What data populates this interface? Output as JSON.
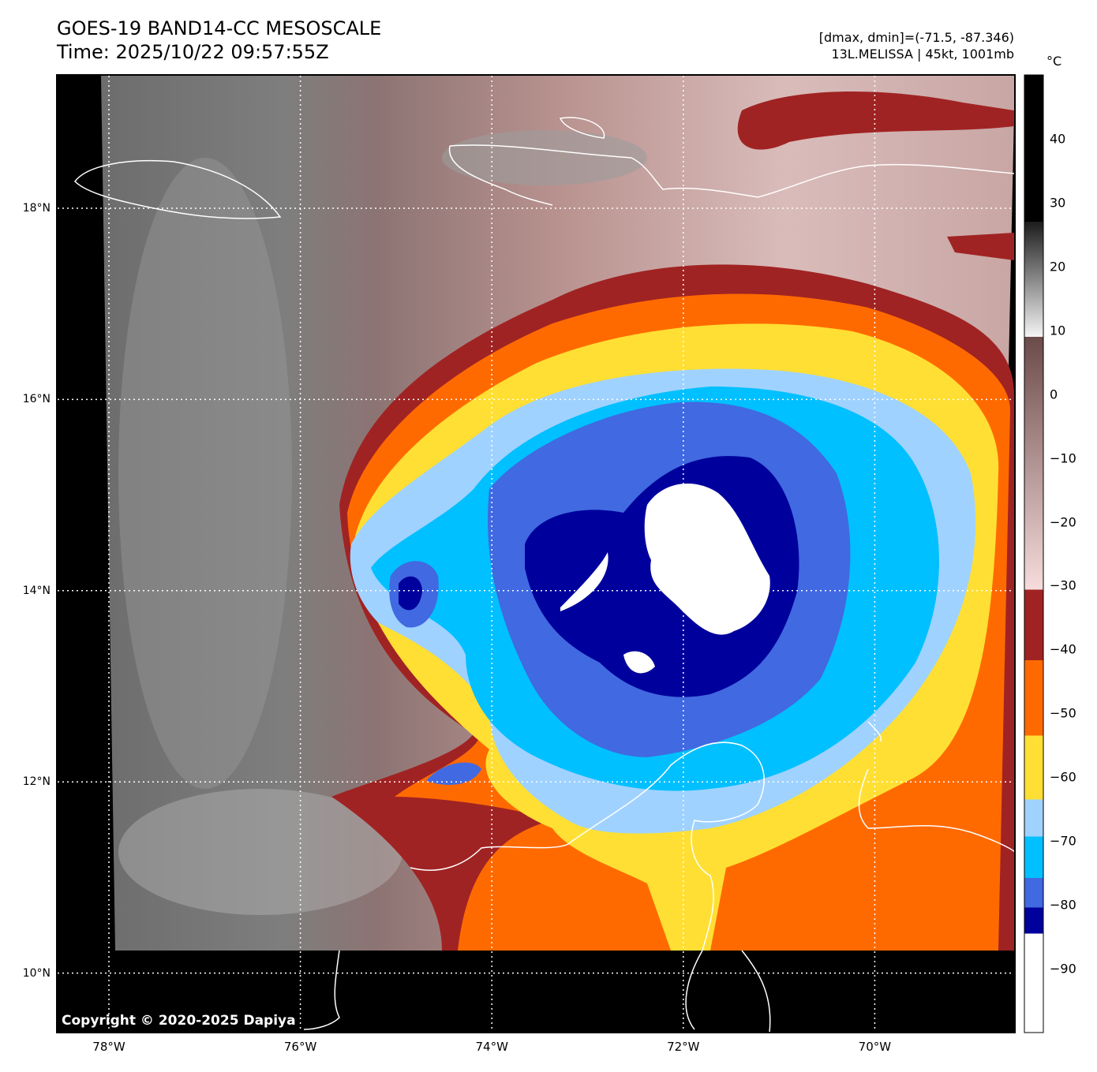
{
  "header": {
    "title_line1": "GOES-19 BAND14-CC MESOSCALE",
    "title_line2": "Time: 2025/10/22 09:57:55Z",
    "stats": "[dmax, dmin]=(-71.5, -87.346)",
    "storm": "13L.MELISSA | 45kt, 1001mb"
  },
  "colorbar": {
    "unit": "°C",
    "range": [
      -100,
      50
    ],
    "ticks": [
      "40",
      "30",
      "20",
      "10",
      "0",
      "−10",
      "−20",
      "−30",
      "−40",
      "−50",
      "−60",
      "−70",
      "−80",
      "−90"
    ],
    "tick_values": [
      40,
      30,
      20,
      10,
      0,
      -10,
      -20,
      -30,
      -40,
      -50,
      -60,
      -70,
      -80,
      -90
    ],
    "bands": [
      {
        "from": 50,
        "to": 27,
        "color": "#000000"
      },
      {
        "from": 27,
        "to": 9,
        "color_start": "#1c1c1c",
        "color_end": "#f4f4f4"
      },
      {
        "from": 9,
        "to": -30.6,
        "color_start": "#6b4b49",
        "color_end": "#f6dcdc"
      },
      {
        "from": -30.6,
        "to": -41.7,
        "color": "#a02323"
      },
      {
        "from": -41.7,
        "to": -53.5,
        "color": "#ff6a00"
      },
      {
        "from": -53.5,
        "to": -63.5,
        "color": "#ffdf33"
      },
      {
        "from": -63.5,
        "to": -69.3,
        "color": "#a0d2ff"
      },
      {
        "from": -69.3,
        "to": -75.8,
        "color": "#00c0ff"
      },
      {
        "from": -75.8,
        "to": -80.4,
        "color": "#4169e1"
      },
      {
        "from": -80.4,
        "to": -84.5,
        "color": "#00009c"
      },
      {
        "from": -84.5,
        "to": -100,
        "color": "#ffffff"
      }
    ]
  },
  "map": {
    "lat_labels": [
      "18°N",
      "16°N",
      "14°N",
      "12°N",
      "10°N"
    ],
    "lat_values": [
      18,
      16,
      14,
      12,
      10
    ],
    "lon_labels": [
      "78°W",
      "76°W",
      "74°W",
      "72°W",
      "70°W"
    ],
    "lon_values": [
      78,
      76,
      74,
      72,
      70
    ],
    "copyright": "Copyright © 2020-2025 Dapiya",
    "colors": {
      "red": "#a02323",
      "orange": "#ff6a00",
      "yellow": "#ffdf33",
      "lightblue": "#a0d2ff",
      "cyan": "#00c0ff",
      "royal": "#4169e1",
      "navy": "#00009c",
      "white": "#ffffff"
    }
  }
}
